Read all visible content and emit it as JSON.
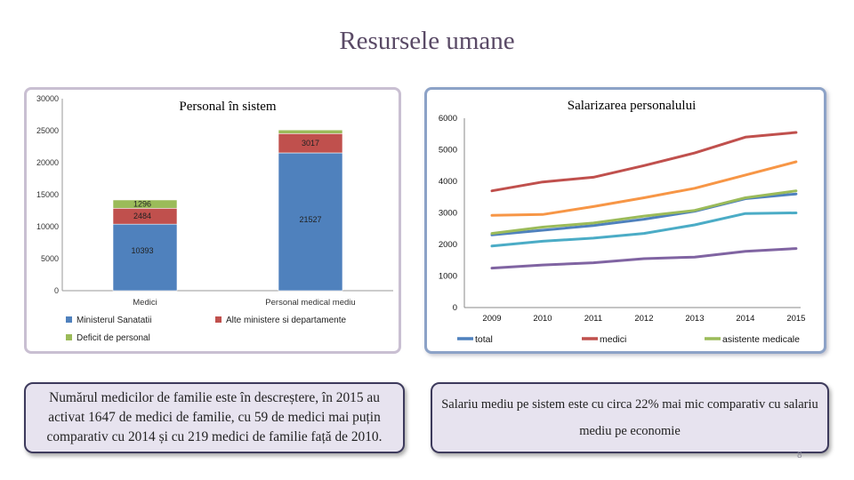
{
  "slide": {
    "title": "Resursele umane",
    "page_number": "8"
  },
  "texts": {
    "left": "Numărul medicilor de familie este în descreștere, în 2015 au activat 1647 de medici de familie, cu 59 de medici mai puțin comparativ cu 2014 și cu 219 medici de familie față de 2010.",
    "right": "Salariu mediu pe sistem este cu circa 22% mai mic comparativ cu salariu mediu pe economie"
  },
  "chart_data": [
    {
      "type": "bar",
      "stacked": true,
      "title": "Personal în sistem",
      "categories": [
        "Medici",
        "Personal medical mediu"
      ],
      "series": [
        {
          "name": "Ministerul Sanatatii",
          "values": [
            10393,
            21527
          ],
          "color": "#4f81bd",
          "labels": [
            "10393",
            "21527"
          ]
        },
        {
          "name": "Alte ministere si departamente",
          "values": [
            2484,
            3017
          ],
          "color": "#c0504d",
          "labels": [
            "2484",
            "3017"
          ]
        },
        {
          "name": "Deficit de personal",
          "values": [
            1296,
            566
          ],
          "color": "#9bbb59",
          "labels": [
            "1296",
            ""
          ]
        }
      ],
      "ylim": [
        0,
        30000
      ],
      "yticks": [
        "0",
        "5000",
        "10000",
        "15000",
        "20000",
        "25000",
        "30000"
      ],
      "legend_position": "bottom"
    },
    {
      "type": "line",
      "title": "Salarizarea personalului",
      "x": [
        "2009",
        "2010",
        "2011",
        "2012",
        "2013",
        "2014",
        "2015"
      ],
      "series": [
        {
          "name": "total",
          "values": [
            2300,
            2450,
            2600,
            2800,
            3050,
            3450,
            3600
          ],
          "color": "#4f81bd"
        },
        {
          "name": "medici",
          "values": [
            3700,
            3980,
            4130,
            4500,
            4900,
            5400,
            5550
          ],
          "color": "#c0504d"
        },
        {
          "name": "asistente medicale",
          "values": [
            2350,
            2550,
            2680,
            2900,
            3080,
            3480,
            3700
          ],
          "color": "#9bbb59"
        },
        {
          "name": "",
          "values": [
            1250,
            1350,
            1420,
            1550,
            1600,
            1780,
            1870
          ],
          "color": "#8064a2"
        },
        {
          "name": "",
          "values": [
            1950,
            2100,
            2200,
            2350,
            2620,
            2980,
            3000
          ],
          "color": "#4bacc6"
        },
        {
          "name": "",
          "values": [
            2920,
            2950,
            3200,
            3480,
            3780,
            4200,
            4620
          ],
          "color": "#f79646"
        }
      ],
      "ylim": [
        0,
        6000
      ],
      "yticks": [
        "0",
        "1000",
        "2000",
        "3000",
        "4000",
        "5000",
        "6000"
      ],
      "legend_position": "bottom"
    }
  ]
}
